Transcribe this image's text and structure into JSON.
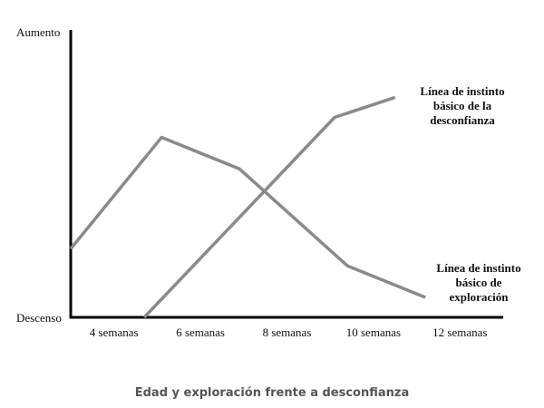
{
  "chart_data": {
    "type": "line",
    "title": "Edad y exploración frente a desconfianza",
    "xlim": [
      3,
      13
    ],
    "xticks": [
      {
        "value": 4,
        "label": "4 semanas"
      },
      {
        "value": 6,
        "label": "6 semanas"
      },
      {
        "value": 8,
        "label": "8 semanas"
      },
      {
        "value": 10,
        "label": "10 semanas"
      },
      {
        "value": 12,
        "label": "12 semanas"
      }
    ],
    "ylim": [
      0,
      100
    ],
    "yticks": [
      {
        "value": 0,
        "label": "Descenso"
      },
      {
        "value": 100,
        "label": "Aumento"
      }
    ],
    "series": [
      {
        "color": "#8a8a8a",
        "x": [
          3,
          5.1,
          6.9,
          9.4,
          11.2
        ],
        "values": [
          24,
          63,
          52,
          18,
          7
        ]
      },
      {
        "color": "#8a8a8a",
        "x": [
          4.7,
          9.1,
          10.5
        ],
        "values": [
          0,
          70,
          77
        ]
      }
    ],
    "annotations": [
      {
        "lines": [
          "Línea de instinto",
          "básico de la",
          "desconfianza"
        ]
      },
      {
        "lines": [
          "Línea de instinto",
          "básico de",
          "exploración"
        ]
      }
    ]
  }
}
